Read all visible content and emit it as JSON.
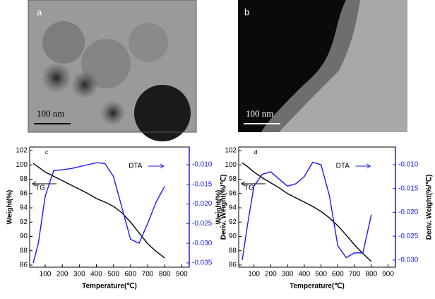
{
  "images": [
    {
      "label": "a",
      "scale_bar": "100 nm"
    },
    {
      "label": "b",
      "scale_bar": "100 nm"
    }
  ],
  "chart_data": [
    {
      "type": "line",
      "panel_label": "c",
      "xlabel": "Temperature(℃)",
      "ylabel": "Weight(%)",
      "y2label": "Deriv. Weight(%/℃)",
      "x": [
        30,
        60,
        100,
        150,
        200,
        250,
        300,
        350,
        400,
        450,
        500,
        550,
        600,
        650,
        700,
        750,
        800
      ],
      "xlim": [
        9,
        944
      ],
      "xticks": [
        100,
        200,
        300,
        400,
        500,
        600,
        700,
        800,
        900
      ],
      "ylim": [
        85.7,
        102.5
      ],
      "yticks": [
        86,
        88,
        90,
        92,
        94,
        96,
        98,
        100,
        102
      ],
      "y2lim": [
        -0.0361,
        -0.0055
      ],
      "y2ticks": [
        {
          "value": -0.01,
          "label": "-0.010"
        },
        {
          "value": -0.015,
          "label": "-0.015"
        },
        {
          "value": -0.02,
          "label": "-0.020"
        },
        {
          "value": -0.025,
          "label": "-0.025"
        },
        {
          "value": -0.03,
          "label": "-0.030"
        },
        {
          "value": -0.035,
          "label": "-0.035"
        }
      ],
      "series": [
        {
          "name": "TG",
          "color": "#000000",
          "values": [
            100.2,
            99.7,
            99,
            98.4,
            97.8,
            97.2,
            96.6,
            96,
            95.3,
            94.8,
            94.2,
            93.3,
            92,
            90.5,
            89,
            87.9,
            87
          ]
        },
        {
          "name": "DTA",
          "color": "#1a1aff",
          "axis": "y2",
          "values": [
            -0.035,
            -0.03,
            -0.018,
            -0.0115,
            -0.0113,
            -0.011,
            -0.0105,
            -0.01,
            -0.0095,
            -0.0097,
            -0.013,
            -0.021,
            -0.029,
            -0.03,
            -0.025,
            -0.0195,
            -0.0155
          ]
        }
      ]
    },
    {
      "type": "line",
      "panel_label": "d",
      "xlabel": "Temperature(℃)",
      "ylabel": "Weight(%)",
      "y2label": "Deriv. Weight(%/℃)",
      "x": [
        30,
        60,
        100,
        150,
        200,
        250,
        300,
        350,
        400,
        450,
        500,
        550,
        600,
        650,
        700,
        750,
        800
      ],
      "xlim": [
        9,
        944
      ],
      "xticks": [
        100,
        200,
        300,
        400,
        500,
        600,
        700,
        800,
        900
      ],
      "ylim": [
        85.7,
        102.5
      ],
      "yticks": [
        86,
        88,
        90,
        92,
        94,
        96,
        98,
        100,
        102
      ],
      "y2lim": [
        -0.0315,
        -0.0063
      ],
      "y2ticks": [
        {
          "value": -0.01,
          "label": "-0.010"
        },
        {
          "value": -0.015,
          "label": "-0.015"
        },
        {
          "value": -0.02,
          "label": "-0.020"
        },
        {
          "value": -0.025,
          "label": "-0.025"
        },
        {
          "value": -0.03,
          "label": "-0.030"
        }
      ],
      "series": [
        {
          "name": "TG",
          "color": "#000000",
          "values": [
            100.3,
            99.8,
            99,
            98.2,
            97.5,
            96.8,
            96,
            95.4,
            94.8,
            94.2,
            93.5,
            92.6,
            91.5,
            90.2,
            88.8,
            87.6,
            86.5
          ]
        },
        {
          "name": "DTA",
          "color": "#1a1aff",
          "axis": "y2",
          "values": [
            -0.03,
            -0.023,
            -0.0145,
            -0.012,
            -0.0115,
            -0.013,
            -0.0145,
            -0.014,
            -0.0125,
            -0.0095,
            -0.01,
            -0.0165,
            -0.027,
            -0.0295,
            -0.0285,
            -0.0285,
            -0.0205
          ]
        }
      ]
    }
  ]
}
